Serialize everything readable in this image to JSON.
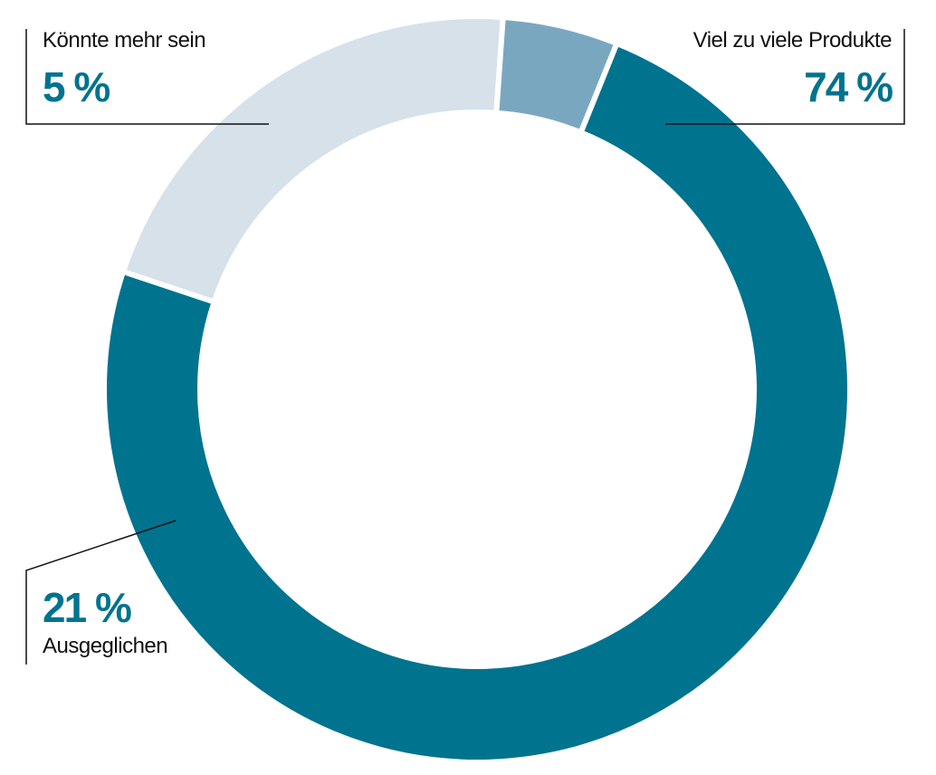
{
  "chart_data": {
    "type": "pie",
    "variant": "donut",
    "slices": [
      {
        "label": "Viel zu viele Produkte",
        "value": 74,
        "display": "74 %",
        "color": "#00738f"
      },
      {
        "label": "Ausgeglichen",
        "value": 21,
        "display": "21 %",
        "color": "#d6e1ea"
      },
      {
        "label": "Könnte mehr sein",
        "value": 5,
        "display": "5 %",
        "color": "#7aa7c0"
      }
    ],
    "start_angle_deg": 22,
    "direction": "clockwise",
    "value_color": "#00738f",
    "text_color": "#111111"
  }
}
